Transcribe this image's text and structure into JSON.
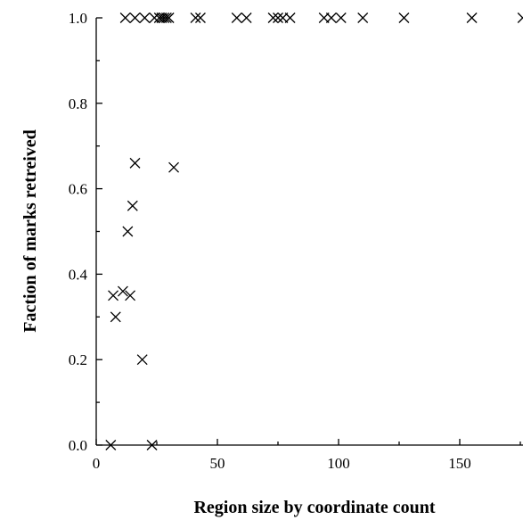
{
  "chart_data": {
    "type": "scatter",
    "title": "",
    "xlabel": "Region size by coordinate count",
    "ylabel": "Faction of marks retreived",
    "xlim": [
      0,
      175
    ],
    "ylim": [
      0,
      1.0
    ],
    "x_ticks": [
      0,
      50,
      100,
      150
    ],
    "x_tick_labels": [
      "0",
      "50",
      "100",
      "150"
    ],
    "y_ticks": [
      0.0,
      0.2,
      0.4,
      0.6,
      0.8,
      1.0
    ],
    "y_tick_labels": [
      "0.0",
      "0.2",
      "0.4",
      "0.6",
      "0.8",
      "1.0"
    ],
    "grid": false,
    "legend": "none",
    "marker": "x",
    "points": [
      {
        "x": 12,
        "y": 1.0
      },
      {
        "x": 16,
        "y": 1.0
      },
      {
        "x": 20,
        "y": 1.0
      },
      {
        "x": 24,
        "y": 1.0
      },
      {
        "x": 26,
        "y": 1.0
      },
      {
        "x": 27,
        "y": 1.0
      },
      {
        "x": 28,
        "y": 1.0
      },
      {
        "x": 29,
        "y": 1.0
      },
      {
        "x": 30,
        "y": 1.0
      },
      {
        "x": 41,
        "y": 1.0
      },
      {
        "x": 43,
        "y": 1.0
      },
      {
        "x": 58,
        "y": 1.0
      },
      {
        "x": 62,
        "y": 1.0
      },
      {
        "x": 73,
        "y": 1.0
      },
      {
        "x": 75,
        "y": 1.0
      },
      {
        "x": 77,
        "y": 1.0
      },
      {
        "x": 80,
        "y": 1.0
      },
      {
        "x": 94,
        "y": 1.0
      },
      {
        "x": 97,
        "y": 1.0
      },
      {
        "x": 101,
        "y": 1.0
      },
      {
        "x": 110,
        "y": 1.0
      },
      {
        "x": 127,
        "y": 1.0
      },
      {
        "x": 155,
        "y": 1.0
      },
      {
        "x": 176,
        "y": 1.0
      },
      {
        "x": 16,
        "y": 0.66
      },
      {
        "x": 32,
        "y": 0.65
      },
      {
        "x": 15,
        "y": 0.56
      },
      {
        "x": 13,
        "y": 0.5
      },
      {
        "x": 7,
        "y": 0.35
      },
      {
        "x": 11,
        "y": 0.36
      },
      {
        "x": 14,
        "y": 0.35
      },
      {
        "x": 8,
        "y": 0.3
      },
      {
        "x": 19,
        "y": 0.2
      },
      {
        "x": 6,
        "y": 0.0
      },
      {
        "x": 23,
        "y": 0.0
      }
    ]
  }
}
